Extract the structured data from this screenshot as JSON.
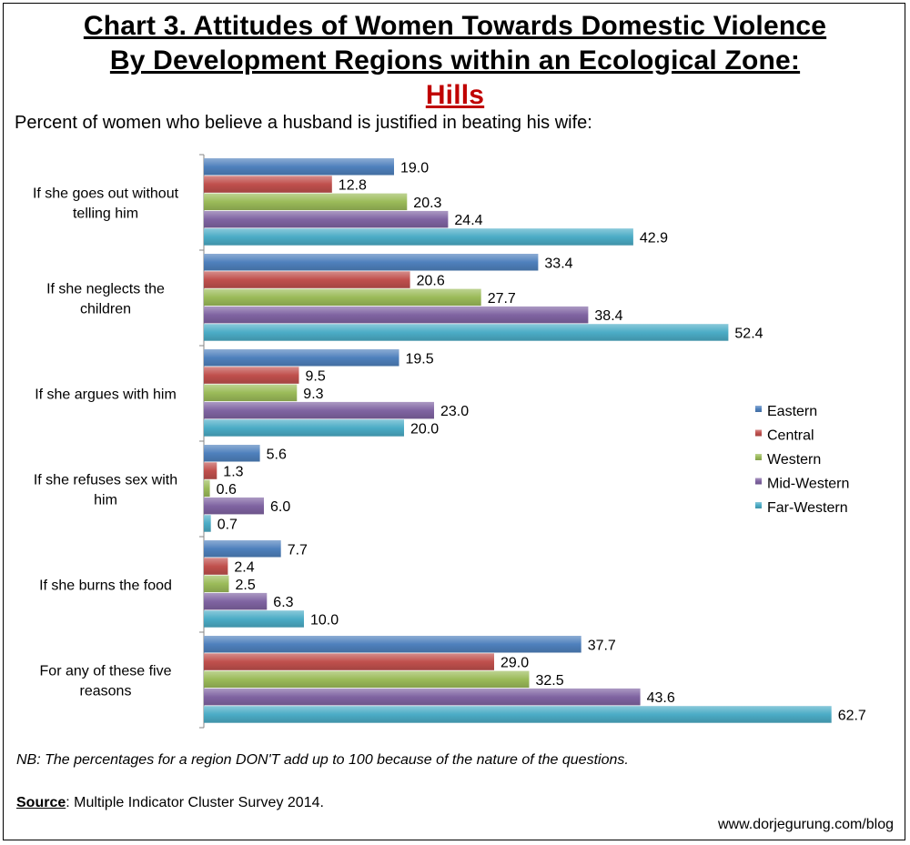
{
  "title_line1": "Chart 3. Attitudes of Women Towards Domestic Violence",
  "title_line2": "By Development Regions within an Ecological Zone:",
  "title_line3": "Hills",
  "subtitle": "Percent of women who believe a husband is justified in beating his wife:",
  "note": "NB: The percentages for a region DON'T add up to 100 because of the nature of the questions.",
  "source_label": "Source",
  "source_text": ": Multiple Indicator Cluster Survey 2014.",
  "website": "www.dorjegurung.com/blog",
  "chart_data": {
    "type": "bar",
    "orientation": "horizontal",
    "categories": [
      [
        "If she goes out without",
        "telling him"
      ],
      [
        "If she neglects the",
        "children"
      ],
      [
        "If she argues with him"
      ],
      [
        "If she refuses sex with",
        "him"
      ],
      [
        "If she burns the food"
      ],
      [
        "For any of these five",
        "reasons"
      ]
    ],
    "series": [
      {
        "name": "Eastern",
        "color": "#4f81bd",
        "values": [
          19.0,
          33.4,
          19.5,
          5.6,
          7.7,
          37.7
        ]
      },
      {
        "name": "Central",
        "color": "#c0504d",
        "values": [
          12.8,
          20.6,
          9.5,
          1.3,
          2.4,
          29.0
        ]
      },
      {
        "name": "Western",
        "color": "#9bbb59",
        "values": [
          20.3,
          27.7,
          9.3,
          0.6,
          2.5,
          32.5
        ]
      },
      {
        "name": "Mid-Western",
        "color": "#8064a2",
        "values": [
          24.4,
          38.4,
          23.0,
          6.0,
          6.3,
          43.6
        ]
      },
      {
        "name": "Far-Western",
        "color": "#4bacc6",
        "values": [
          42.9,
          52.4,
          20.0,
          0.7,
          10.0,
          62.7
        ]
      }
    ],
    "legend_position": "right",
    "grid": false,
    "value_labels": true
  }
}
